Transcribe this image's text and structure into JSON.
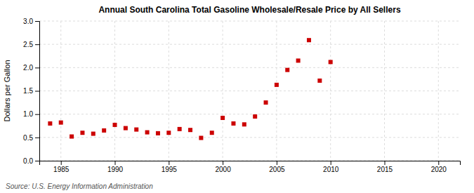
{
  "chart_data": {
    "type": "scatter",
    "title": "Annual South Carolina Total Gasoline Wholesale/Resale Price by All Sellers",
    "ylabel": "Dollars per Gallon",
    "annotations": [
      "Source: U.S. Energy Information Administration"
    ],
    "x": [
      1984,
      1985,
      1986,
      1987,
      1988,
      1989,
      1990,
      1991,
      1992,
      1993,
      1994,
      1995,
      1996,
      1997,
      1998,
      1999,
      2000,
      2001,
      2002,
      2003,
      2004,
      2005,
      2006,
      2007,
      2008,
      2009,
      2010
    ],
    "values": [
      0.8,
      0.82,
      0.52,
      0.6,
      0.58,
      0.65,
      0.77,
      0.7,
      0.67,
      0.61,
      0.59,
      0.6,
      0.68,
      0.66,
      0.49,
      0.6,
      0.92,
      0.8,
      0.78,
      0.95,
      1.25,
      1.63,
      1.95,
      2.15,
      2.59,
      1.72,
      2.12
    ],
    "color": "#cc0000",
    "marker": "square",
    "xlim": [
      1983,
      2022
    ],
    "ylim": [
      0.0,
      3.0
    ],
    "xticks": [
      1985,
      1990,
      1995,
      2000,
      2005,
      2010,
      2015,
      2020
    ],
    "yticks": [
      {
        "value": 0.0,
        "label": "0.0"
      },
      0.5,
      {
        "value": 1.0,
        "label": "1.0"
      },
      1.5,
      {
        "value": 2.0,
        "label": "2.0"
      },
      2.5,
      {
        "value": 3.0,
        "label": "3.0"
      }
    ],
    "grid": true
  }
}
